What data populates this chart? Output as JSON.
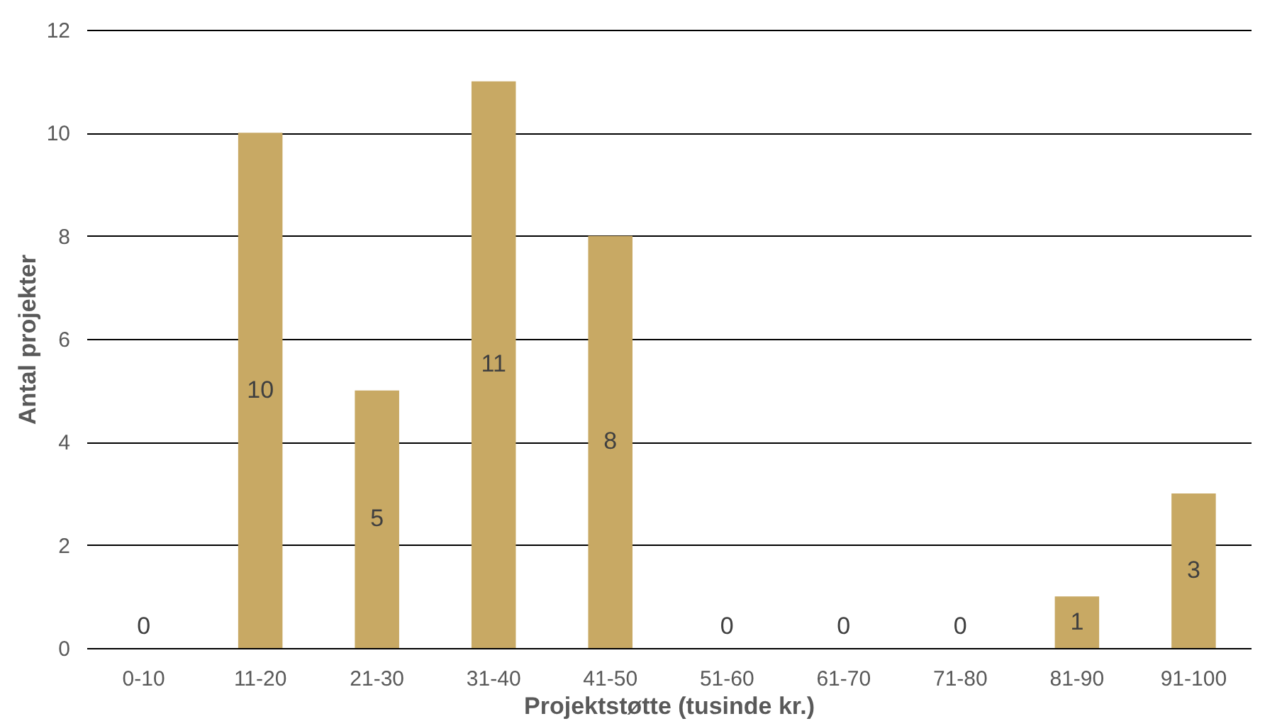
{
  "chart_data": {
    "type": "bar",
    "xlabel": "Projektstøtte (tusinde kr.)",
    "ylabel": "Antal projekter",
    "categories": [
      "0-10",
      "11-20",
      "21-30",
      "31-40",
      "41-50",
      "51-60",
      "61-70",
      "71-80",
      "81-90",
      "91-100"
    ],
    "values": [
      0,
      10,
      5,
      11,
      8,
      0,
      0,
      0,
      1,
      3
    ],
    "color": "#c8a964",
    "ylim": [
      0,
      12
    ],
    "yticks": [
      0,
      2,
      4,
      6,
      8,
      10,
      12
    ],
    "grid": "y",
    "data_labels": true
  }
}
